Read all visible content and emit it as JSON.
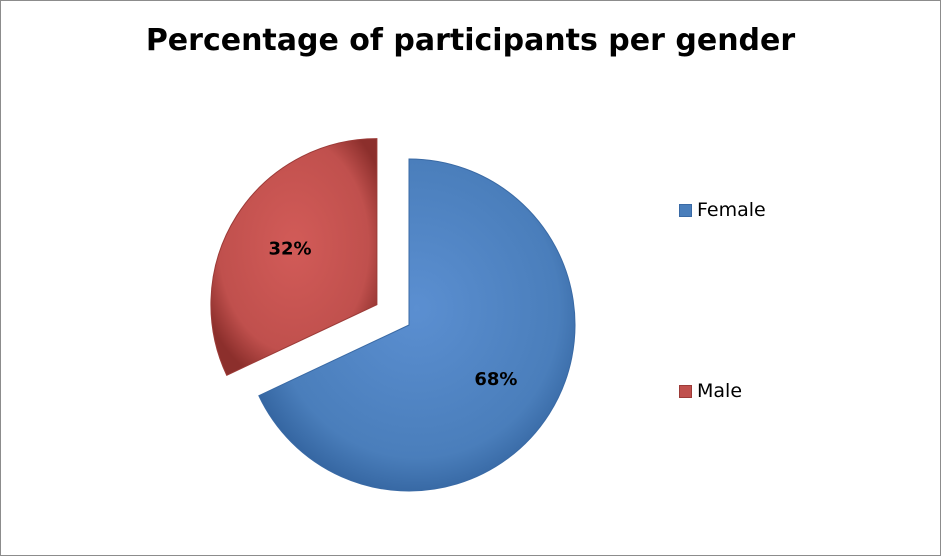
{
  "chart_data": {
    "type": "pie",
    "title": "Percentage of participants per gender",
    "categories": [
      "Female",
      "Male"
    ],
    "values": [
      68,
      32
    ],
    "data_labels": [
      "68%",
      "32%"
    ],
    "colors": [
      "#4a7ebb",
      "#c0504d"
    ],
    "exploded": [
      "Male"
    ],
    "legend_position": "right"
  }
}
